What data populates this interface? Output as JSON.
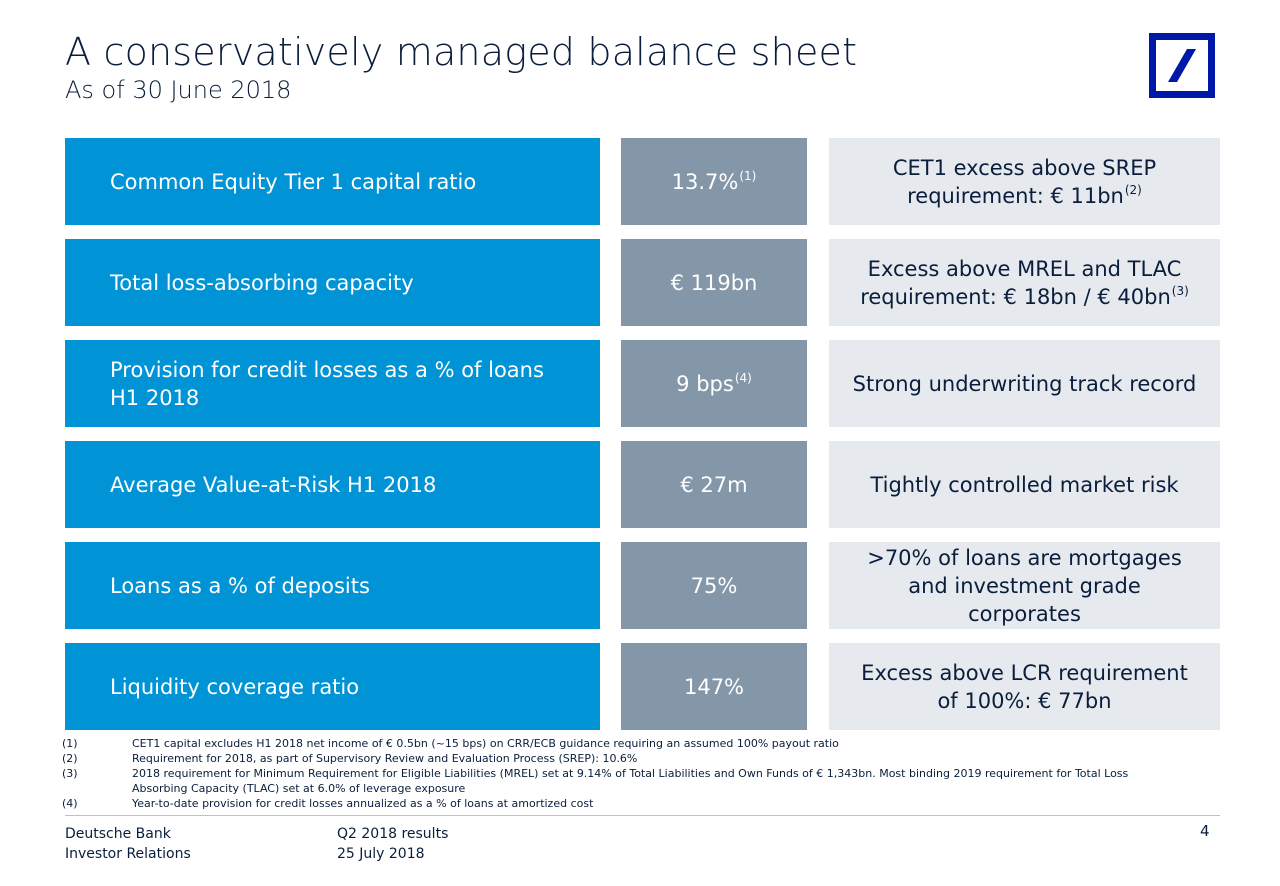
{
  "header": {
    "title": "A conservatively managed balance sheet",
    "subtitle": "As of 30 June 2018"
  },
  "logo": {
    "icon": "deutsche-bank-slash-logo",
    "color": "#0018a8"
  },
  "rows": [
    {
      "label": "Common Equity Tier 1 capital ratio",
      "value": "13.7%",
      "value_note": "(1)",
      "note_lines": [
        "CET1 excess above SREP",
        "requirement: € 11bn"
      ],
      "note_sup": "(2)"
    },
    {
      "label": "Total loss-absorbing capacity",
      "value": "€ 119bn",
      "value_note": "",
      "note_lines": [
        "Excess above MREL and TLAC",
        "requirement: € 18bn / € 40bn"
      ],
      "note_sup": "(3)"
    },
    {
      "label_lines": [
        "Provision for credit losses as a % of loans",
        "H1 2018"
      ],
      "value": "9 bps",
      "value_note": "(4)",
      "note_lines": [
        "Strong underwriting track record"
      ],
      "note_sup": ""
    },
    {
      "label": "Average Value-at-Risk H1 2018",
      "value": "€ 27m",
      "value_note": "",
      "note_lines": [
        "Tightly controlled market risk"
      ],
      "note_sup": ""
    },
    {
      "label": "Loans as a % of deposits",
      "value": "75%",
      "value_note": "",
      "note_lines": [
        ">70% of loans are mortgages",
        "and investment grade",
        "corporates"
      ],
      "note_sup": ""
    },
    {
      "label": "Liquidity coverage ratio",
      "value": "147%",
      "value_note": "",
      "note_lines": [
        "Excess above LCR requirement",
        "of 100%: € 77bn"
      ],
      "note_sup": ""
    }
  ],
  "footnotes": [
    {
      "num": "(1)",
      "text": "CET1 capital excludes H1 2018 net income of € 0.5bn (~15 bps) on CRR/ECB guidance requiring an assumed 100% payout ratio"
    },
    {
      "num": "(2)",
      "text": "Requirement for 2018, as part of Supervisory Review and Evaluation Process (SREP): 10.6%"
    },
    {
      "num": "(3)",
      "text": "2018 requirement for Minimum Requirement for Eligible Liabilities (MREL) set at 9.14% of Total Liabilities and Own Funds of € 1,343bn. Most binding 2019 requirement for Total Loss",
      "cont": "Absorbing Capacity (TLAC) set at 6.0% of leverage exposure"
    },
    {
      "num": "(4)",
      "text": "Year-to-date provision for credit losses annualized as a % of loans at amortized cost"
    }
  ],
  "footer": {
    "company": "Deutsche Bank",
    "department": "Investor Relations",
    "event": "Q2 2018 results",
    "date": "25 July 2018",
    "page": "4"
  },
  "colors": {
    "label_bg": "#0093d5",
    "value_bg": "#8397a9",
    "note_bg": "#e6e9ee",
    "text_dark": "#0a1e3c"
  }
}
